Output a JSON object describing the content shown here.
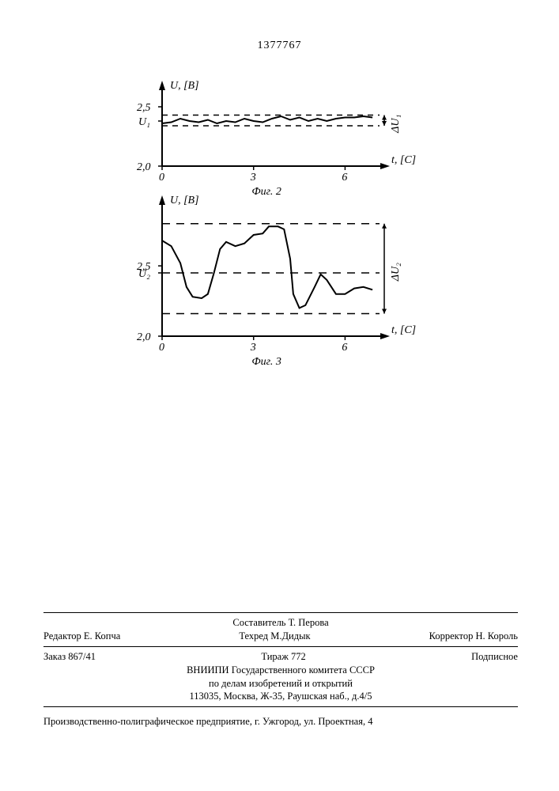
{
  "doc_number": "1377767",
  "chart2": {
    "type": "line",
    "y_axis_label": "U, [B]",
    "x_axis_label": "t, [C]",
    "y_ticks": [
      "2,0",
      "2,5"
    ],
    "x_ticks": [
      "0",
      "3",
      "6"
    ],
    "U_label": "U₁",
    "delta_label": "ΔU₁",
    "caption": "Фиг. 2",
    "line_color": "#000000",
    "bg_color": "#ffffff",
    "xlim": [
      0,
      7
    ],
    "ylim": [
      2.0,
      2.6
    ],
    "dash_upper_y": 2.43,
    "dash_lower_y": 2.34,
    "mean_y": 2.38,
    "line_width": 2,
    "axis_width": 2,
    "dash_pattern": "7,6",
    "fontsize_label": 14,
    "fontsize_tick": 14,
    "data": [
      [
        0.0,
        2.36
      ],
      [
        0.3,
        2.37
      ],
      [
        0.6,
        2.4
      ],
      [
        0.9,
        2.38
      ],
      [
        1.2,
        2.37
      ],
      [
        1.5,
        2.39
      ],
      [
        1.8,
        2.36
      ],
      [
        2.1,
        2.38
      ],
      [
        2.4,
        2.37
      ],
      [
        2.7,
        2.4
      ],
      [
        3.0,
        2.38
      ],
      [
        3.3,
        2.37
      ],
      [
        3.6,
        2.4
      ],
      [
        3.9,
        2.42
      ],
      [
        4.2,
        2.39
      ],
      [
        4.5,
        2.41
      ],
      [
        4.8,
        2.38
      ],
      [
        5.1,
        2.4
      ],
      [
        5.4,
        2.38
      ],
      [
        5.7,
        2.4
      ],
      [
        6.0,
        2.41
      ],
      [
        6.3,
        2.41
      ],
      [
        6.6,
        2.42
      ],
      [
        6.9,
        2.41
      ]
    ]
  },
  "chart3": {
    "type": "line",
    "y_axis_label": "U, [B]",
    "x_axis_label": "t, [C]",
    "y_ticks": [
      "2,0",
      "2,5"
    ],
    "x_ticks": [
      "0",
      "3",
      "6"
    ],
    "U_label": "U₂",
    "delta_label": "ΔU₂",
    "caption": "Фиг. 3",
    "line_color": "#000000",
    "bg_color": "#ffffff",
    "xlim": [
      0,
      7
    ],
    "ylim": [
      2.0,
      2.9
    ],
    "dash_upper_y": 2.8,
    "dash_mid_y": 2.45,
    "dash_lower_y": 2.16,
    "line_width": 2,
    "axis_width": 2,
    "dash_pattern": "10,8",
    "fontsize_label": 14,
    "fontsize_tick": 14,
    "data": [
      [
        0.0,
        2.68
      ],
      [
        0.3,
        2.64
      ],
      [
        0.6,
        2.52
      ],
      [
        0.8,
        2.35
      ],
      [
        1.0,
        2.28
      ],
      [
        1.3,
        2.27
      ],
      [
        1.5,
        2.3
      ],
      [
        1.7,
        2.45
      ],
      [
        1.9,
        2.62
      ],
      [
        2.1,
        2.67
      ],
      [
        2.4,
        2.64
      ],
      [
        2.7,
        2.66
      ],
      [
        3.0,
        2.72
      ],
      [
        3.3,
        2.73
      ],
      [
        3.5,
        2.78
      ],
      [
        3.8,
        2.78
      ],
      [
        4.0,
        2.76
      ],
      [
        4.2,
        2.55
      ],
      [
        4.3,
        2.3
      ],
      [
        4.5,
        2.2
      ],
      [
        4.7,
        2.22
      ],
      [
        5.0,
        2.35
      ],
      [
        5.2,
        2.44
      ],
      [
        5.4,
        2.4
      ],
      [
        5.7,
        2.3
      ],
      [
        6.0,
        2.3
      ],
      [
        6.3,
        2.34
      ],
      [
        6.6,
        2.35
      ],
      [
        6.9,
        2.33
      ]
    ]
  },
  "footer": {
    "compiler": "Составитель Т. Перова",
    "editor": "Редактор Е. Копча",
    "tech": "Техред   М.Дидык",
    "corrector": "Корректор Н. Король",
    "order": "Заказ 867/41",
    "circulation": "Тираж 772",
    "subscription": "Подписное",
    "org1": "ВНИИПИ Государственного комитета СССР",
    "org2": "по делам изобретений и открытий",
    "address": "113035, Москва, Ж-35, Раушская наб., д.4/5",
    "printer": "Производственно-полиграфическое предприятие, г. Ужгород, ул. Проектная, 4"
  }
}
